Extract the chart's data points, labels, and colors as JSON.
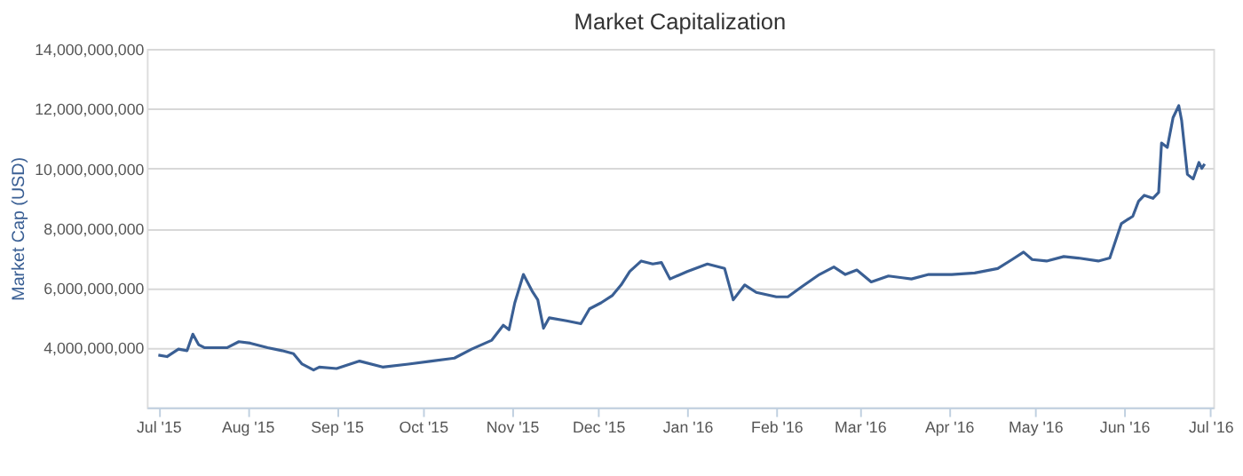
{
  "chart_data": {
    "type": "line",
    "title": "Market Capitalization",
    "ylabel": "Market Cap (USD)",
    "x": [
      "2015-07-01",
      "2015-07-04",
      "2015-07-08",
      "2015-07-11",
      "2015-07-13",
      "2015-07-15",
      "2015-07-17",
      "2015-07-25",
      "2015-07-29",
      "2015-08-02",
      "2015-08-08",
      "2015-08-13",
      "2015-08-17",
      "2015-08-20",
      "2015-08-24",
      "2015-08-26",
      "2015-09-01",
      "2015-09-09",
      "2015-09-17",
      "2015-09-26",
      "2015-10-04",
      "2015-10-12",
      "2015-10-18",
      "2015-10-25",
      "2015-10-29",
      "2015-10-31",
      "2015-11-02",
      "2015-11-05",
      "2015-11-08",
      "2015-11-10",
      "2015-11-12",
      "2015-11-14",
      "2015-11-20",
      "2015-11-25",
      "2015-11-28",
      "2015-12-02",
      "2015-12-06",
      "2015-12-09",
      "2015-12-12",
      "2015-12-16",
      "2015-12-20",
      "2015-12-23",
      "2015-12-26",
      "2016-01-01",
      "2016-01-08",
      "2016-01-14",
      "2016-01-17",
      "2016-01-21",
      "2016-01-25",
      "2016-02-01",
      "2016-02-05",
      "2016-02-10",
      "2016-02-16",
      "2016-02-21",
      "2016-02-25",
      "2016-02-29",
      "2016-03-05",
      "2016-03-11",
      "2016-03-19",
      "2016-03-25",
      "2016-04-02",
      "2016-04-10",
      "2016-04-18",
      "2016-04-23",
      "2016-04-27",
      "2016-04-30",
      "2016-05-05",
      "2016-05-11",
      "2016-05-16",
      "2016-05-23",
      "2016-05-27",
      "2016-05-31",
      "2016-06-04",
      "2016-06-06",
      "2016-06-08",
      "2016-06-11",
      "2016-06-13",
      "2016-06-14",
      "2016-06-16",
      "2016-06-18",
      "2016-06-20",
      "2016-06-21",
      "2016-06-23",
      "2016-06-25",
      "2016-06-27",
      "2016-06-28",
      "2016-06-29"
    ],
    "series": [
      {
        "color": "#3a5f94",
        "values": [
          3750000000,
          3700000000,
          3950000000,
          3900000000,
          4450000000,
          4100000000,
          4000000000,
          4000000000,
          4200000000,
          4150000000,
          4000000000,
          3900000000,
          3800000000,
          3450000000,
          3250000000,
          3350000000,
          3300000000,
          3550000000,
          3350000000,
          3450000000,
          3550000000,
          3650000000,
          3950000000,
          4250000000,
          4750000000,
          4600000000,
          5500000000,
          6450000000,
          5900000000,
          5600000000,
          4650000000,
          5000000000,
          4900000000,
          4800000000,
          5300000000,
          5500000000,
          5750000000,
          6100000000,
          6550000000,
          6900000000,
          6800000000,
          6850000000,
          6300000000,
          6550000000,
          6800000000,
          6650000000,
          5600000000,
          6100000000,
          5850000000,
          5700000000,
          5700000000,
          6050000000,
          6450000000,
          6700000000,
          6450000000,
          6600000000,
          6200000000,
          6400000000,
          6300000000,
          6450000000,
          6450000000,
          6500000000,
          6650000000,
          6950000000,
          7200000000,
          6950000000,
          6900000000,
          7050000000,
          7000000000,
          6900000000,
          7000000000,
          8150000000,
          8400000000,
          8900000000,
          9100000000,
          9000000000,
          9200000000,
          10850000000,
          10700000000,
          11700000000,
          12100000000,
          11600000000,
          9800000000,
          9650000000,
          10200000000,
          10000000000,
          10150000000
        ]
      }
    ],
    "xlim": [
      "2015-06-27",
      "2016-07-02"
    ],
    "xticks": [
      {
        "value": "2015-07-01",
        "label": "Jul '15"
      },
      {
        "value": "2015-08-01",
        "label": "Aug '15"
      },
      {
        "value": "2015-09-01",
        "label": "Sep '15"
      },
      {
        "value": "2015-10-01",
        "label": "Oct '15"
      },
      {
        "value": "2015-11-01",
        "label": "Nov '15"
      },
      {
        "value": "2015-12-01",
        "label": "Dec '15"
      },
      {
        "value": "2016-01-01",
        "label": "Jan '16"
      },
      {
        "value": "2016-02-01",
        "label": "Feb '16"
      },
      {
        "value": "2016-03-01",
        "label": "Mar '16"
      },
      {
        "value": "2016-04-01",
        "label": "Apr '16"
      },
      {
        "value": "2016-05-01",
        "label": "May '16"
      },
      {
        "value": "2016-06-01",
        "label": "Jun '16"
      },
      {
        "value": "2016-07-01",
        "label": "Jul '16"
      }
    ],
    "ylim": [
      2000000000,
      14000000000
    ],
    "yticks": [
      {
        "value": 4000000000,
        "label": "4,000,000,000"
      },
      {
        "value": 6000000000,
        "label": "6,000,000,000"
      },
      {
        "value": 8000000000,
        "label": "8,000,000,000"
      },
      {
        "value": 10000000000,
        "label": "10,000,000,000"
      },
      {
        "value": 12000000000,
        "label": "12,000,000,000"
      },
      {
        "value": 14000000000,
        "label": "14,000,000,000"
      }
    ],
    "grid": "y",
    "marker": "none",
    "line_style": "solid",
    "legend": false
  }
}
